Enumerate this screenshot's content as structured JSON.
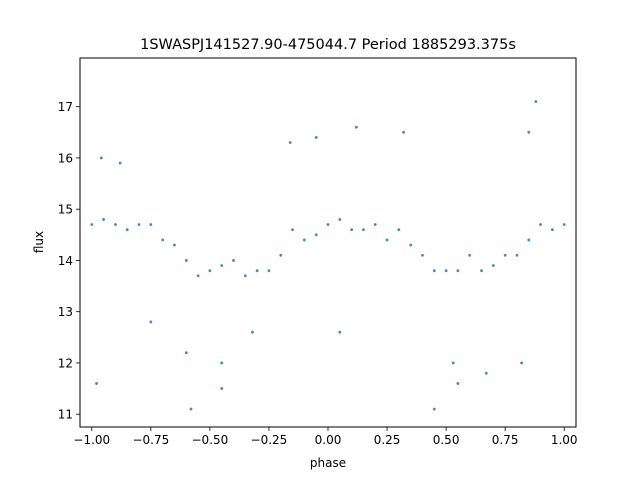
{
  "chart_data": {
    "type": "scatter",
    "title": "1SWASPJ141527.90-475044.7 Period 1885293.375s",
    "xlabel": "phase",
    "ylabel": "flux",
    "xlim": [
      -1.05,
      1.05
    ],
    "ylim": [
      10.75,
      17.95
    ],
    "xticks": [
      {
        "value": -1.0,
        "label": "−1.00"
      },
      {
        "value": -0.75,
        "label": "−0.75"
      },
      {
        "value": -0.5,
        "label": "−0.50"
      },
      {
        "value": -0.25,
        "label": "−0.25"
      },
      {
        "value": 0.0,
        "label": "0.00"
      },
      {
        "value": 0.25,
        "label": "0.25"
      },
      {
        "value": 0.5,
        "label": "0.50"
      },
      {
        "value": 0.75,
        "label": "0.75"
      },
      {
        "value": 1.0,
        "label": "1.00"
      }
    ],
    "yticks": [
      {
        "value": 11,
        "label": "11"
      },
      {
        "value": 12,
        "label": "12"
      },
      {
        "value": 13,
        "label": "13"
      },
      {
        "value": 14,
        "label": "14"
      },
      {
        "value": 15,
        "label": "15"
      },
      {
        "value": 16,
        "label": "16"
      },
      {
        "value": 17,
        "label": "17"
      }
    ],
    "grid": false,
    "legend": "none",
    "marker_color": "#1f77b4",
    "series": [
      {
        "values": [
          {
            "x": -1.0,
            "y": 14.7
          },
          {
            "x": -0.95,
            "y": 14.8
          },
          {
            "x": -0.9,
            "y": 14.7
          },
          {
            "x": -0.85,
            "y": 14.6
          },
          {
            "x": -0.8,
            "y": 14.7
          },
          {
            "x": -0.75,
            "y": 14.7
          },
          {
            "x": -0.7,
            "y": 14.4
          },
          {
            "x": -0.65,
            "y": 14.3
          },
          {
            "x": -0.6,
            "y": 14.0
          },
          {
            "x": -0.55,
            "y": 13.7
          },
          {
            "x": -0.5,
            "y": 13.8
          },
          {
            "x": -0.45,
            "y": 13.9
          },
          {
            "x": -0.4,
            "y": 14.0
          },
          {
            "x": -0.35,
            "y": 13.7
          },
          {
            "x": -0.3,
            "y": 13.8
          },
          {
            "x": -0.25,
            "y": 13.8
          },
          {
            "x": -0.2,
            "y": 14.1
          },
          {
            "x": -0.15,
            "y": 14.6
          },
          {
            "x": -0.1,
            "y": 14.4
          },
          {
            "x": -0.05,
            "y": 14.5
          },
          {
            "x": 0.0,
            "y": 14.7
          },
          {
            "x": 0.05,
            "y": 14.8
          },
          {
            "x": 0.1,
            "y": 14.6
          },
          {
            "x": 0.15,
            "y": 14.6
          },
          {
            "x": 0.2,
            "y": 14.7
          },
          {
            "x": 0.25,
            "y": 14.4
          },
          {
            "x": 0.3,
            "y": 14.6
          },
          {
            "x": 0.35,
            "y": 14.3
          },
          {
            "x": 0.4,
            "y": 14.1
          },
          {
            "x": 0.45,
            "y": 13.8
          },
          {
            "x": 0.5,
            "y": 13.8
          },
          {
            "x": 0.55,
            "y": 13.8
          },
          {
            "x": 0.6,
            "y": 14.1
          },
          {
            "x": 0.65,
            "y": 13.8
          },
          {
            "x": 0.7,
            "y": 13.9
          },
          {
            "x": 0.75,
            "y": 14.1
          },
          {
            "x": 0.8,
            "y": 14.1
          },
          {
            "x": 0.85,
            "y": 14.4
          },
          {
            "x": 0.9,
            "y": 14.7
          },
          {
            "x": 0.95,
            "y": 14.6
          },
          {
            "x": 1.0,
            "y": 14.7
          },
          {
            "x": -0.96,
            "y": 16.0
          },
          {
            "x": -0.88,
            "y": 15.9
          },
          {
            "x": -0.6,
            "y": 12.2
          },
          {
            "x": -0.45,
            "y": 12.0
          },
          {
            "x": -0.45,
            "y": 11.5
          },
          {
            "x": -0.32,
            "y": 12.6
          },
          {
            "x": -0.16,
            "y": 16.3
          },
          {
            "x": -0.05,
            "y": 16.4
          },
          {
            "x": 0.12,
            "y": 16.6
          },
          {
            "x": 0.32,
            "y": 16.5
          },
          {
            "x": 0.53,
            "y": 12.0
          },
          {
            "x": 0.55,
            "y": 11.6
          },
          {
            "x": 0.67,
            "y": 11.8
          },
          {
            "x": 0.85,
            "y": 16.5
          },
          {
            "x": 0.88,
            "y": 17.1
          },
          {
            "x": -0.98,
            "y": 11.6
          },
          {
            "x": -0.75,
            "y": 12.8
          },
          {
            "x": 0.05,
            "y": 12.6
          },
          {
            "x": 0.45,
            "y": 11.1
          },
          {
            "x": -0.58,
            "y": 11.1
          },
          {
            "x": 0.82,
            "y": 12.0
          }
        ]
      }
    ]
  }
}
